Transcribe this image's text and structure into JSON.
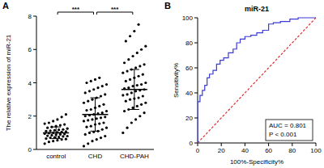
{
  "chart_data": [
    {
      "type": "scatter",
      "panel": "A",
      "y_label": "The relative expression of miR-21",
      "categories": [
        "control",
        "CHD",
        "CHD-PAH"
      ],
      "color": "#000000",
      "ylim": [
        0,
        8
      ],
      "yticks": [
        0,
        2,
        4,
        6,
        8
      ],
      "groups": [
        {
          "values": [
            0.35,
            0.45,
            0.5,
            0.55,
            0.6,
            0.62,
            0.65,
            0.7,
            0.72,
            0.75,
            0.78,
            0.8,
            0.82,
            0.85,
            0.88,
            0.9,
            0.92,
            0.95,
            0.98,
            1.0,
            1.02,
            1.05,
            1.08,
            1.1,
            1.12,
            1.15,
            1.18,
            1.2,
            1.25,
            1.3,
            1.35,
            1.4,
            1.45,
            1.5,
            1.55,
            1.6,
            1.7,
            1.8,
            1.95,
            2.1
          ],
          "mean": 1.0,
          "sd": 0.35
        },
        {
          "values": [
            0.2,
            0.35,
            0.5,
            0.6,
            0.7,
            0.8,
            0.9,
            1.0,
            1.05,
            1.1,
            1.2,
            1.3,
            1.35,
            1.4,
            1.5,
            1.55,
            1.6,
            1.7,
            1.75,
            1.8,
            1.85,
            1.9,
            1.95,
            2.0,
            2.05,
            2.1,
            2.15,
            2.2,
            2.3,
            2.35,
            2.4,
            2.5,
            2.6,
            2.7,
            2.8,
            2.9,
            3.0,
            3.1,
            3.2,
            3.3,
            3.4,
            3.5,
            3.6,
            3.7,
            3.8,
            3.9,
            4.0,
            4.1,
            4.2,
            4.3
          ],
          "mean": 2.1,
          "sd": 1.0
        },
        {
          "values": [
            1.0,
            1.3,
            1.6,
            1.8,
            2.0,
            2.2,
            2.3,
            2.4,
            2.5,
            2.6,
            2.7,
            2.8,
            2.9,
            3.0,
            3.05,
            3.1,
            3.2,
            3.25,
            3.3,
            3.4,
            3.5,
            3.55,
            3.6,
            3.65,
            3.7,
            3.8,
            3.85,
            3.9,
            4.0,
            4.1,
            4.2,
            4.3,
            4.4,
            4.5,
            4.6,
            4.7,
            4.8,
            4.9,
            5.0,
            5.1,
            5.2,
            5.4,
            5.6,
            5.8,
            6.0,
            6.2,
            6.5,
            6.8,
            7.1,
            7.5
          ],
          "mean": 3.6,
          "sd": 1.2
        }
      ],
      "annotations": [
        {
          "text": "***",
          "from": 0,
          "to": 1
        },
        {
          "text": "***",
          "from": 1,
          "to": 2
        }
      ]
    },
    {
      "type": "line",
      "panel": "B",
      "title": "miR-21",
      "x_label": "100%-Specificity%",
      "y_label": "Sensitivity%",
      "xlim": [
        0,
        100
      ],
      "ylim": [
        0,
        100
      ],
      "xticks": [
        0,
        20,
        40,
        60,
        80,
        100
      ],
      "yticks": [
        0,
        20,
        40,
        60,
        80,
        100
      ],
      "series": [
        {
          "color": "#3b3bd6",
          "line_style": "solid",
          "x": [
            0,
            0,
            2,
            2,
            4,
            4,
            6,
            6,
            8,
            8,
            10,
            10,
            13,
            13,
            16,
            16,
            19,
            19,
            22,
            22,
            26,
            26,
            30,
            30,
            33,
            33,
            36,
            36,
            40,
            40,
            45,
            45,
            50,
            50,
            55,
            55,
            60,
            60,
            64,
            64,
            70,
            70,
            78,
            78,
            85,
            85,
            100
          ],
          "values": [
            0,
            33,
            33,
            38,
            38,
            42,
            42,
            46,
            46,
            52,
            52,
            55,
            55,
            58,
            58,
            63,
            63,
            66,
            66,
            68,
            68,
            72,
            72,
            75,
            75,
            80,
            80,
            83,
            83,
            85,
            85,
            86,
            86,
            88,
            88,
            90,
            90,
            95,
            95,
            96,
            96,
            97,
            97,
            99,
            99,
            100,
            100
          ]
        },
        {
          "color": "#e03030",
          "line_style": "dashed",
          "x": [
            0,
            100
          ],
          "values": [
            0,
            100
          ]
        }
      ],
      "annotations": [
        {
          "text": "AUC = 0.801"
        },
        {
          "text": "P < 0.001"
        }
      ]
    }
  ]
}
